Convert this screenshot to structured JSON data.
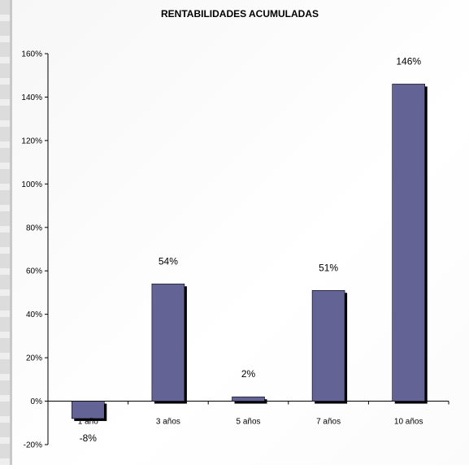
{
  "chart_data": {
    "type": "bar",
    "title": "RENTABILIDADES ACUMULADAS",
    "categories": [
      "1 año",
      "3 años",
      "5 años",
      "7 años",
      "10 años"
    ],
    "values": [
      -8,
      54,
      2,
      51,
      146
    ],
    "data_labels": [
      "-8%",
      "54%",
      "2%",
      "51%",
      "146%"
    ],
    "ylim": [
      -20,
      160
    ],
    "yticks": [
      -20,
      0,
      20,
      40,
      60,
      80,
      100,
      120,
      140,
      160
    ],
    "ytick_labels": [
      "-20%",
      "0%",
      "20%",
      "40%",
      "60%",
      "80%",
      "100%",
      "120%",
      "140%",
      "160%"
    ],
    "xlabel": "",
    "ylabel": "",
    "grid": false,
    "legend": "none",
    "bar_color": "#636396",
    "shadow_color": "#000000"
  }
}
